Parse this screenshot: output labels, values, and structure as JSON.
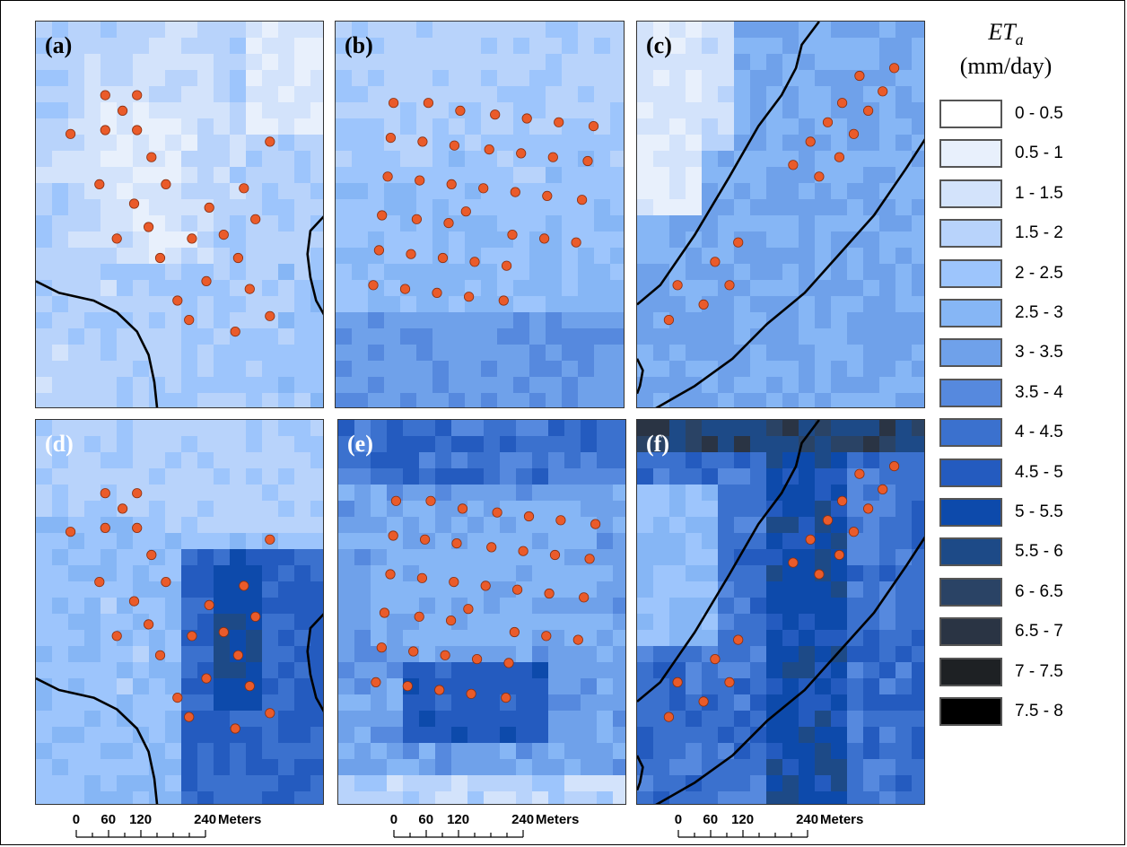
{
  "panels": [
    {
      "label": "(a)",
      "light_label": false
    },
    {
      "label": "(b)",
      "light_label": false
    },
    {
      "label": "(c)",
      "light_label": false
    },
    {
      "label": "(d)",
      "light_label": true
    },
    {
      "label": "(e)",
      "light_label": true
    },
    {
      "label": "(f)",
      "light_label": true
    }
  ],
  "legend": {
    "title_var": "ET",
    "title_sub": "a",
    "units": "(mm/day)",
    "classes": [
      {
        "label": "0 - 0.5",
        "color": "#ffffff"
      },
      {
        "label": "0.5 - 1",
        "color": "#e8f0fc"
      },
      {
        "label": "1 - 1.5",
        "color": "#d3e3fb"
      },
      {
        "label": "1.5 - 2",
        "color": "#b8d3fb"
      },
      {
        "label": "2 - 2.5",
        "color": "#9dc5fc"
      },
      {
        "label": "2.5 - 3",
        "color": "#86b6f5"
      },
      {
        "label": "3 - 3.5",
        "color": "#6fa1ea"
      },
      {
        "label": "3.5 - 4",
        "color": "#5689de"
      },
      {
        "label": "4 - 4.5",
        "color": "#3b71ce"
      },
      {
        "label": "4.5 - 5",
        "color": "#245bbf"
      },
      {
        "label": "5 - 5.5",
        "color": "#0d4aab"
      },
      {
        "label": "5.5 - 6",
        "color": "#1d4a87"
      },
      {
        "label": "6 - 6.5",
        "color": "#2a4365"
      },
      {
        "label": "6.5 - 7",
        "color": "#2a3444"
      },
      {
        "label": "7 - 7.5",
        "color": "#1e2124"
      },
      {
        "label": "7.5 - 8",
        "color": "#000000"
      }
    ]
  },
  "scalebar": {
    "ticks": [
      "0",
      "60",
      "120",
      "240"
    ],
    "units": "Meters"
  },
  "style": {
    "point_color": "#ea5b2a",
    "point_stroke": "#8a2f10",
    "boundary_color": "#000000"
  }
}
